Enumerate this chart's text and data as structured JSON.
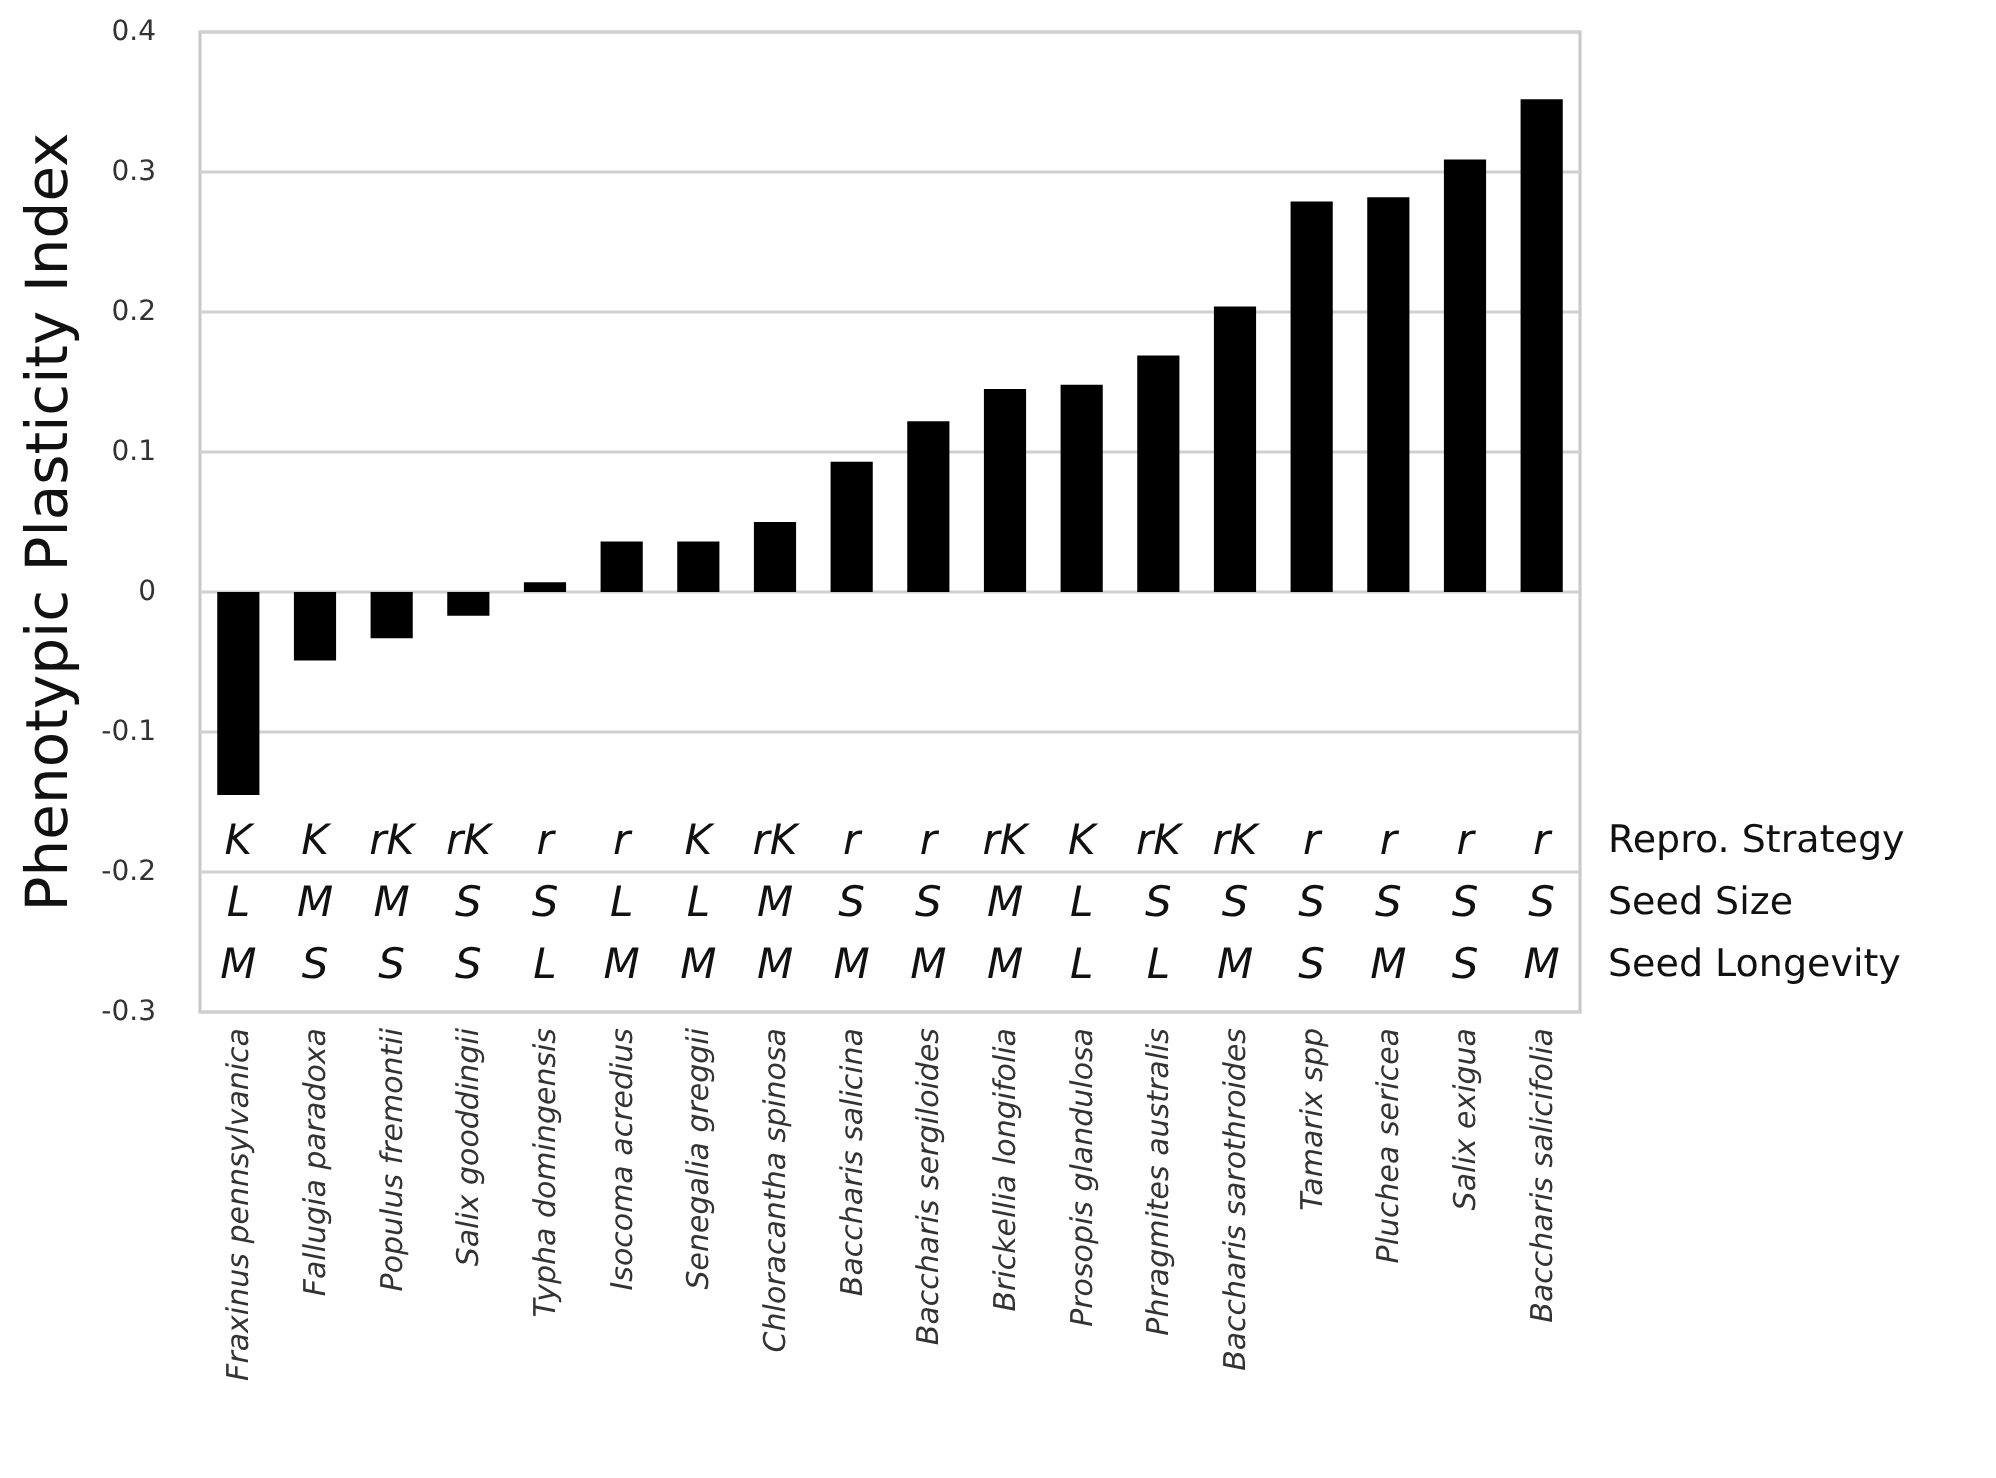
{
  "chart_data": {
    "type": "bar",
    "ylabel": "Phenotypic Plasticity Index",
    "categories": [
      "Fraxinus pennsylvanica",
      "Fallugia paradoxa",
      "Populus fremontii",
      "Salix gooddingii",
      "Typha domingensis",
      "Isocoma acredius",
      "Senegalia greggii",
      "Chloracantha spinosa",
      "Baccharis salicina",
      "Baccharis sergiloides",
      "Brickellia longifolia",
      "Prosopis glandulosa",
      "Phragmites australis",
      "Baccharis sarothroides",
      "Tamarix spp",
      "Pluchea sericea",
      "Salix exigua",
      "Baccharis salicifolia"
    ],
    "values": [
      -0.145,
      -0.049,
      -0.033,
      -0.017,
      0.007,
      0.036,
      0.036,
      0.05,
      0.093,
      0.122,
      0.145,
      0.148,
      0.169,
      0.204,
      0.279,
      0.282,
      0.309,
      0.352
    ],
    "color": "#000000",
    "ylim": [
      -0.3,
      0.4
    ],
    "yticks": [
      -0.3,
      -0.2,
      -0.1,
      0,
      0.1,
      0.2,
      0.3,
      0.4
    ],
    "grid": "y",
    "annotations": [
      "Repro. Strategy",
      "Seed Size",
      "Seed Longevity",
      "K",
      "K",
      "rK",
      "rK",
      "r",
      "r",
      "K",
      "rK",
      "r",
      "r",
      "rK",
      "K",
      "rK",
      "rK",
      "r",
      "r",
      "r",
      "r",
      "L",
      "M",
      "M",
      "S",
      "S",
      "L",
      "L",
      "M",
      "S",
      "S",
      "M",
      "L",
      "S",
      "S",
      "S",
      "S",
      "S",
      "S",
      "M",
      "S",
      "S",
      "S",
      "L",
      "M",
      "M",
      "M",
      "M",
      "M",
      "M",
      "L",
      "L",
      "M",
      "S",
      "M",
      "S",
      "M"
    ]
  }
}
